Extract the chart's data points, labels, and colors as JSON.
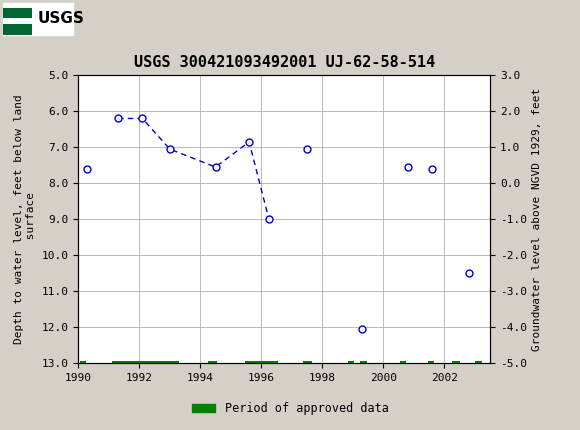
{
  "title": "USGS 300421093492001 UJ-62-58-514",
  "ylabel_left": "Depth to water level, feet below land\n surface",
  "ylabel_right": "Groundwater level above NGVD 1929, feet",
  "ylim_left": [
    13.0,
    5.0
  ],
  "ylim_right": [
    -5.0,
    3.0
  ],
  "xlim": [
    1990,
    2003.5
  ],
  "xticks": [
    1990,
    1992,
    1994,
    1996,
    1998,
    2000,
    2002
  ],
  "yticks_left": [
    5.0,
    6.0,
    7.0,
    8.0,
    9.0,
    10.0,
    11.0,
    12.0,
    13.0
  ],
  "yticks_right": [
    3.0,
    2.0,
    1.0,
    0.0,
    -1.0,
    -2.0,
    -3.0,
    -4.0,
    -5.0
  ],
  "standalone_points": [
    {
      "year": 1990.3,
      "depth": 7.6
    },
    {
      "year": 1997.5,
      "depth": 7.05
    },
    {
      "year": 1999.3,
      "depth": 12.05
    },
    {
      "year": 2000.8,
      "depth": 7.55
    },
    {
      "year": 2001.6,
      "depth": 7.6
    },
    {
      "year": 2002.8,
      "depth": 10.5
    }
  ],
  "connected_segment": [
    {
      "year": 1991.3,
      "depth": 6.2
    },
    {
      "year": 1992.1,
      "depth": 6.2
    },
    {
      "year": 1993.0,
      "depth": 7.05
    },
    {
      "year": 1994.5,
      "depth": 7.55
    },
    {
      "year": 1995.6,
      "depth": 6.85
    },
    {
      "year": 1996.25,
      "depth": 9.0
    }
  ],
  "approved_bars": [
    {
      "start": 1990.05,
      "end": 1990.25
    },
    {
      "start": 1991.1,
      "end": 1993.3
    },
    {
      "start": 1994.25,
      "end": 1994.55
    },
    {
      "start": 1995.45,
      "end": 1996.55
    },
    {
      "start": 1997.35,
      "end": 1997.65
    },
    {
      "start": 1998.85,
      "end": 1999.05
    },
    {
      "start": 1999.25,
      "end": 1999.45
    },
    {
      "start": 2000.55,
      "end": 2000.75
    },
    {
      "start": 2001.45,
      "end": 2001.65
    },
    {
      "start": 2002.25,
      "end": 2002.5
    },
    {
      "start": 2003.0,
      "end": 2003.25
    }
  ],
  "point_color": "#0000CC",
  "line_color": "#0000CC",
  "approved_color": "#008000",
  "background_color": "#d4d0c8",
  "plot_bg_color": "#ffffff",
  "header_bg_color": "#006633",
  "header_text_color": "#ffffff",
  "title_fontsize": 11,
  "axis_label_fontsize": 8,
  "tick_fontsize": 8
}
